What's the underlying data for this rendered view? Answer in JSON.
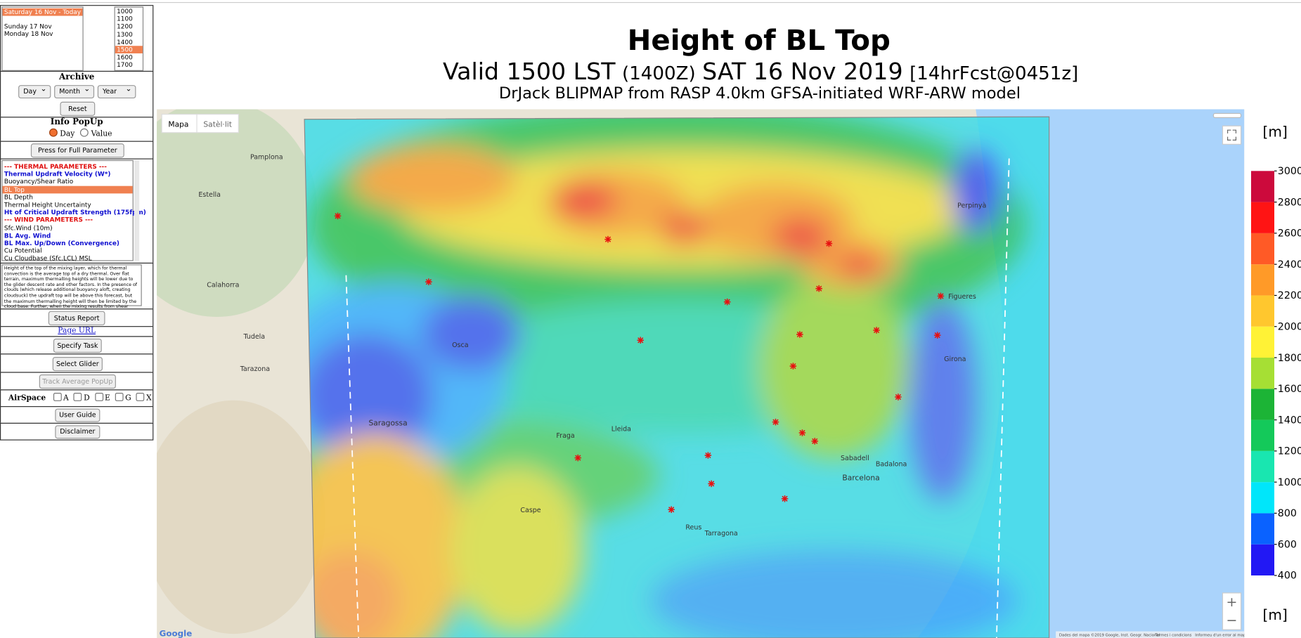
{
  "date_list": {
    "items": [
      "Saturday 16 Nov - Today",
      "Sunday 17 Nov",
      "Monday 18 Nov"
    ],
    "selected": 0
  },
  "time_list": {
    "items": [
      "1000",
      "1100",
      "1200",
      "1300",
      "1400",
      "1500",
      "1600",
      "1700"
    ],
    "selected": 5
  },
  "archive": {
    "title": "Archive",
    "selects": [
      "Day",
      "Month",
      "Year"
    ],
    "reset": "Reset"
  },
  "info_popup": {
    "title": "Info PopUp",
    "options": [
      "Day",
      "Value"
    ],
    "button": "Press for Full Parameter Set"
  },
  "parameters": [
    {
      "text": "--- THERMAL PARAMETERS ---",
      "style": "header"
    },
    {
      "text": "Thermal Updraft Velocity (W*)",
      "style": "bold"
    },
    {
      "text": "Buoyancy/Shear Ratio",
      "style": "normal"
    },
    {
      "text": "BL Top",
      "style": "selected"
    },
    {
      "text": "BL Depth",
      "style": "normal"
    },
    {
      "text": "Thermal Height Uncertainty",
      "style": "normal"
    },
    {
      "text": "Ht of Critical Updraft Strength (175fpm)",
      "style": "bold"
    },
    {
      "text": "--- WIND PARAMETERS ---",
      "style": "header"
    },
    {
      "text": "Sfc.Wind (10m)",
      "style": "normal"
    },
    {
      "text": "BL Avg. Wind",
      "style": "bold"
    },
    {
      "text": "BL Max. Up/Down (Convergence)",
      "style": "bold"
    },
    {
      "text": "Cu Potential",
      "style": "normal"
    },
    {
      "text": "Cu Cloudbase (Sfc.LCL) MSL",
      "style": "normal"
    }
  ],
  "description": "Height of the top of the mixing layer, which for thermal convection is the average top of a dry thermal.  Over flat terrain, maximum thermalling heights will be lower due to the glider descent rate and other factors.  In the presence of clouds (which release additional buoyancy aloft, creating cloudsuck) the updraft top will be above this forecast, but the maximum thermalling height will then be limited by the cloud base.  Further, when the mixing results from shear turbulence",
  "buttons": {
    "status_report": "Status Report",
    "page_url": "Page URL",
    "specify_task": "Specify Task",
    "select_glider": "Select Glider",
    "track_average": "Track Average PopUp",
    "user_guide": "User Guide",
    "disclaimer": "Disclaimer"
  },
  "airspace": {
    "label": "AirSpace",
    "options": [
      "A",
      "D",
      "E",
      "G",
      "X"
    ]
  },
  "header": {
    "title": "Height of BL Top",
    "valid": "Valid 1500 LST",
    "zulu": "(1400Z)",
    "date": "SAT 16 Nov 2019",
    "forecast": "[14hrFcst@0451z]",
    "model": "DrJack BLIPMAP from RASP 4.0km GFSA-initiated WRF-ARW model"
  },
  "map": {
    "map_button": "Mapa",
    "satellite_button": "Satèl·lit",
    "zoom_in": "+",
    "zoom_out": "−",
    "logo": "Google",
    "attribution": "Dades del mapa ©2019 Google, Inst. Geogr. Nacional",
    "terms": "Termes i condicions",
    "report": "Informeu d'un error al mapa",
    "places": [
      "Pamplona",
      "Estella",
      "Calahorra",
      "Tudela",
      "Tarazona",
      "Osca",
      "Saragossa",
      "Lleida",
      "Fraga",
      "Caspe",
      "Reus",
      "Tarragona",
      "Barcelona",
      "Badalona",
      "Sabadell",
      "Girona",
      "Figueres",
      "Perpinyà"
    ]
  },
  "colorbar": {
    "unit": "[m]",
    "ticks": [
      400,
      600,
      800,
      1000,
      1200,
      1400,
      1600,
      1800,
      2000,
      2200,
      2400,
      2600,
      2800,
      3000
    ],
    "colors": [
      "#2218f4",
      "#0a62ff",
      "#00e6fa",
      "#19e6b0",
      "#14c95a",
      "#1cb436",
      "#a6df34",
      "#fff236",
      "#ffc72e",
      "#ff9a28",
      "#ff5a26",
      "#ff1414",
      "#cc0a3c"
    ]
  }
}
